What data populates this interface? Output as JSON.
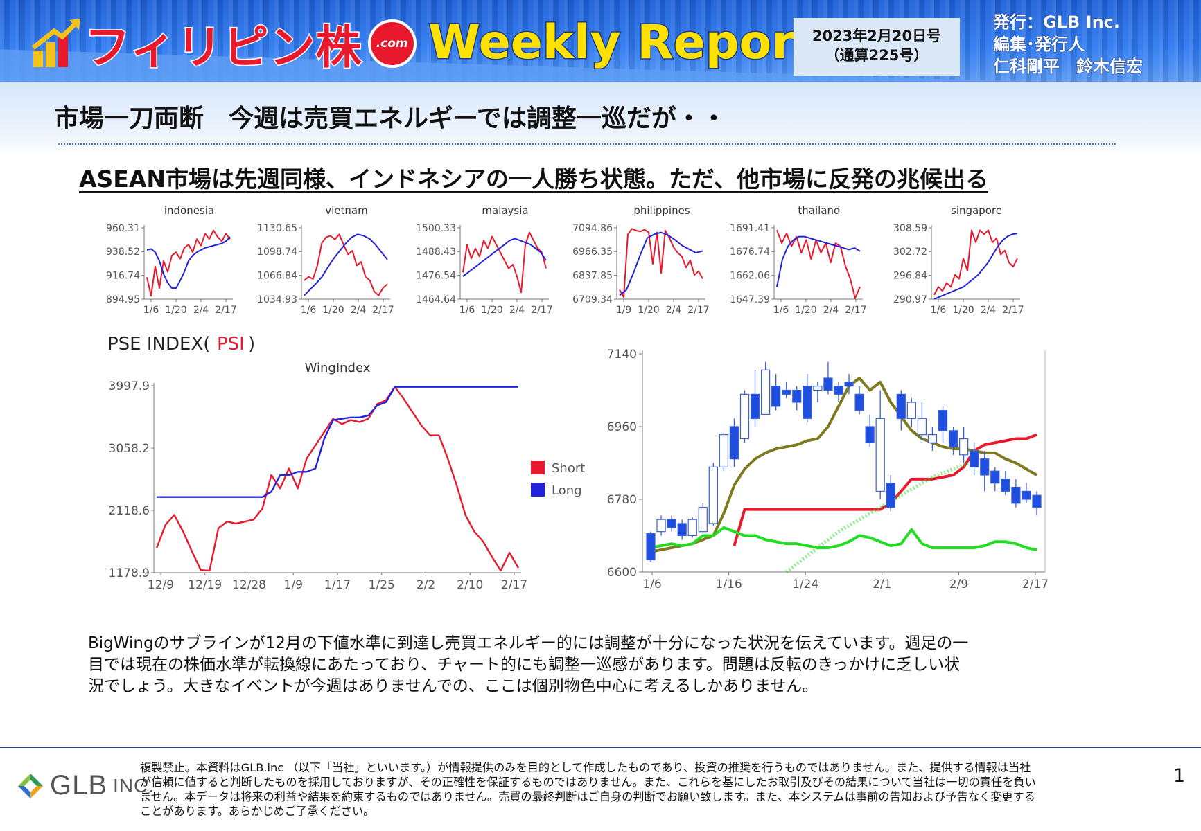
{
  "header": {
    "logo_text": "フィリピン株",
    "logo_dotcom": ".com",
    "report_name": "Weekly Report",
    "date_line1": "2023年2月20日号",
    "date_line2": "（通算225号）",
    "publisher_line1": "発行：GLB Inc.",
    "publisher_line2": "編集･発行人",
    "publisher_line3": "仁科剛平　鈴木信宏"
  },
  "main_title": "市場一刀両断　今週は売買エネルギーでは調整一巡だが・・",
  "subtitle": "ASEAN市場は先週同様、インドネシアの一人勝ち状態。ただ、他市場に反発の兆候出る",
  "colors": {
    "red": "#e8192c",
    "blue": "#2222dd",
    "olive": "#7f7a1e",
    "green": "#22dd22",
    "candle_blue": "#1f4fe0"
  },
  "chart_data": [
    {
      "type": "line",
      "title": "indonesia",
      "yticks": [
        "960.31",
        "938.52",
        "916.74",
        "894.95"
      ],
      "ylim": [
        894.95,
        960.31
      ],
      "xticks": [
        "1/6",
        "1/20",
        "2/4",
        "2/17"
      ],
      "series": [
        {
          "color": "red",
          "values": [
            915,
            898,
            925,
            905,
            930,
            920,
            935,
            938,
            932,
            942,
            945,
            938,
            950,
            944,
            955,
            950,
            958,
            952,
            948,
            955,
            950
          ]
        },
        {
          "color": "blue",
          "values": [
            940,
            941,
            938,
            930,
            918,
            910,
            905,
            905,
            912,
            920,
            930,
            935,
            938,
            940,
            942,
            943,
            944,
            945,
            946,
            948,
            952
          ]
        }
      ]
    },
    {
      "type": "line",
      "title": "vietnam",
      "yticks": [
        "1130.65",
        "1098.74",
        "1066.84",
        "1034.93"
      ],
      "ylim": [
        1034.93,
        1130.65
      ],
      "xticks": [
        "1/6",
        "1/20",
        "2/4",
        "2/17"
      ],
      "series": [
        {
          "color": "red",
          "values": [
            1060,
            1065,
            1062,
            1080,
            1110,
            1118,
            1120,
            1115,
            1122,
            1108,
            1095,
            1100,
            1080,
            1085,
            1065,
            1060,
            1045,
            1040,
            1050,
            1055
          ]
        },
        {
          "color": "blue",
          "values": [
            1040,
            1048,
            1056,
            1065,
            1078,
            1090,
            1100,
            1110,
            1118,
            1122,
            1120,
            1116,
            1108,
            1098,
            1088
          ]
        }
      ]
    },
    {
      "type": "line",
      "title": "malaysia",
      "yticks": [
        "1500.33",
        "1488.43",
        "1476.54",
        "1464.64"
      ],
      "ylim": [
        1464.64,
        1500.33
      ],
      "xticks": [
        "1/6",
        "1/20",
        "2/4",
        "2/17"
      ],
      "series": [
        {
          "color": "red",
          "values": [
            1478,
            1492,
            1485,
            1490,
            1486,
            1494,
            1490,
            1496,
            1492,
            1488,
            1484,
            1480,
            1482,
            1476,
            1468,
            1492,
            1498,
            1494,
            1490,
            1488,
            1480
          ]
        },
        {
          "color": "blue",
          "values": [
            1476,
            1478,
            1480,
            1482,
            1484,
            1486,
            1488,
            1490,
            1492,
            1494,
            1495,
            1494,
            1493,
            1492,
            1490,
            1488,
            1484
          ]
        }
      ]
    },
    {
      "type": "line",
      "title": "philippines",
      "yticks": [
        "7094.86",
        "6966.35",
        "6837.85",
        "6709.34"
      ],
      "ylim": [
        6709.34,
        7094.86
      ],
      "xticks": [
        "1/9",
        "1/20",
        "2/4",
        "2/17"
      ],
      "series": [
        {
          "color": "red",
          "values": [
            6760,
            6720,
            7060,
            7090,
            7080,
            7075,
            7085,
            7070,
            6900,
            7070,
            6850,
            7080,
            7040,
            6990,
            6960,
            6940,
            6880,
            6920,
            6840,
            6860,
            6820
          ]
        },
        {
          "color": "blue",
          "values": [
            6730,
            6760,
            6850,
            6950,
            7040,
            7060,
            7070,
            7055,
            7030,
            7000,
            6980,
            6960,
            6970
          ]
        }
      ]
    },
    {
      "type": "line",
      "title": "thailand",
      "yticks": [
        "1691.41",
        "1676.74",
        "1662.06",
        "1647.39"
      ],
      "ylim": [
        1647.39,
        1691.41
      ],
      "xticks": [
        "1/6",
        "1/20",
        "2/4",
        "2/17"
      ],
      "series": [
        {
          "color": "red",
          "values": [
            1690,
            1682,
            1688,
            1680,
            1686,
            1676,
            1684,
            1672,
            1684,
            1676,
            1682,
            1670,
            1682,
            1680,
            1668,
            1660,
            1648,
            1655
          ]
        },
        {
          "color": "blue",
          "values": [
            1655,
            1672,
            1680,
            1684,
            1686,
            1686,
            1685,
            1684,
            1683,
            1682,
            1681,
            1680,
            1679,
            1678,
            1679,
            1677
          ]
        }
      ]
    },
    {
      "type": "line",
      "title": "singapore",
      "yticks": [
        "308.59",
        "302.72",
        "296.84",
        "290.97"
      ],
      "ylim": [
        290.97,
        308.59
      ],
      "xticks": [
        "1/6",
        "1/20",
        "2/4",
        "2/17"
      ],
      "series": [
        {
          "color": "red",
          "values": [
            292,
            294,
            293,
            295,
            294,
            297,
            296,
            301,
            298,
            308,
            305,
            308,
            307,
            308,
            305,
            306,
            302,
            303,
            300,
            299,
            301
          ]
        },
        {
          "color": "blue",
          "values": [
            291,
            291.5,
            292,
            292.5,
            293,
            293.5,
            294,
            295,
            296,
            297,
            298.5,
            300,
            302,
            304,
            305.5,
            306.5,
            307,
            307.2
          ]
        }
      ]
    },
    {
      "type": "line",
      "title": "WingIndex",
      "header": "PSE INDEX(",
      "header_psi": "PSI",
      "header_close": ")",
      "yticks": [
        "3997.9",
        "3058.2",
        "2118.6",
        "1178.9"
      ],
      "ylim": [
        1178.9,
        3997.9
      ],
      "xticks": [
        "12/9",
        "12/19",
        "12/28",
        "1/9",
        "1/17",
        "1/25",
        "2/2",
        "2/10",
        "2/17"
      ],
      "legend": [
        "Short",
        "Long"
      ],
      "series": [
        {
          "name": "Short",
          "color": "red",
          "values": [
            1550,
            1900,
            2050,
            1800,
            1500,
            1220,
            1210,
            1850,
            1950,
            1920,
            1950,
            1980,
            2150,
            2650,
            2450,
            2750,
            2450,
            2900,
            3100,
            3300,
            3500,
            3420,
            3480,
            3450,
            3500,
            3720,
            3780,
            3980,
            3800,
            3600,
            3400,
            3250,
            3250,
            2900,
            2500,
            2050,
            1800,
            1650,
            1420,
            1210,
            1480,
            1250
          ]
        },
        {
          "name": "Long",
          "color": "blue",
          "values": [
            2320,
            2320,
            2320,
            2320,
            2320,
            2320,
            2320,
            2320,
            2320,
            2320,
            2320,
            2320,
            2320,
            2400,
            2650,
            2650,
            2700,
            2700,
            2750,
            3200,
            3480,
            3500,
            3520,
            3520,
            3550,
            3700,
            3750,
            3980,
            3980,
            3980,
            3980,
            3980,
            3980,
            3980,
            3980,
            3980,
            3980,
            3980,
            3980,
            3980,
            3980,
            3980
          ]
        }
      ]
    },
    {
      "type": "candlestick",
      "yticks": [
        "7140",
        "6960",
        "6780",
        "6600"
      ],
      "ylim": [
        6600,
        7140
      ],
      "xticks": [
        "1/6",
        "1/16",
        "1/24",
        "2/1",
        "2/9",
        "2/17"
      ],
      "candles": [
        [
          6695,
          6630,
          6700,
          6625
        ],
        [
          6700,
          6730,
          6740,
          6690
        ],
        [
          6730,
          6710,
          6740,
          6700
        ],
        [
          6720,
          6690,
          6730,
          6680
        ],
        [
          6690,
          6730,
          6735,
          6685
        ],
        [
          6700,
          6760,
          6770,
          6695
        ],
        [
          6720,
          6860,
          6870,
          6715
        ],
        [
          6860,
          6940,
          6945,
          6850
        ],
        [
          6960,
          6880,
          6980,
          6860
        ],
        [
          6930,
          7040,
          7050,
          6920
        ],
        [
          7040,
          6980,
          7100,
          6960
        ],
        [
          6990,
          7100,
          7120,
          7050
        ],
        [
          7060,
          7010,
          7090,
          7000
        ],
        [
          7050,
          7040,
          7070,
          7030
        ],
        [
          7050,
          7020,
          7060,
          7000
        ],
        [
          7060,
          6980,
          7090,
          6970
        ],
        [
          7050,
          7060,
          7070,
          7020
        ],
        [
          7080,
          7050,
          7120,
          7040
        ],
        [
          7060,
          7040,
          7070,
          7020
        ],
        [
          7070,
          7060,
          7090,
          7040
        ],
        [
          7040,
          7000,
          7060,
          6990
        ],
        [
          6960,
          6920,
          6990,
          6910
        ],
        [
          6800,
          6980,
          7050,
          6780
        ],
        [
          6820,
          6760,
          6840,
          6750
        ],
        [
          7040,
          6980,
          7050,
          6950
        ],
        [
          6980,
          7020,
          7030,
          6960
        ],
        [
          6940,
          6980,
          7020,
          6920
        ],
        [
          6920,
          6940,
          6960,
          6900
        ],
        [
          7000,
          6950,
          7010,
          6920
        ],
        [
          6950,
          6910,
          6960,
          6890
        ],
        [
          6890,
          6930,
          6960,
          6870
        ],
        [
          6900,
          6860,
          6920,
          6840
        ],
        [
          6880,
          6840,
          6900,
          6800
        ],
        [
          6850,
          6820,
          6860,
          6800
        ],
        [
          6830,
          6800,
          6850,
          6790
        ],
        [
          6810,
          6770,
          6830,
          6760
        ],
        [
          6800,
          6780,
          6820,
          6770
        ],
        [
          6790,
          6760,
          6800,
          6740
        ]
      ],
      "lines": [
        {
          "color": "red",
          "values": [
            null,
            null,
            null,
            null,
            null,
            null,
            null,
            null,
            6665,
            6755,
            6755,
            6755,
            6755,
            6755,
            6755,
            6755,
            6755,
            6755,
            6755,
            6755,
            6755,
            6755,
            6755,
            6770,
            6800,
            6830,
            6830,
            6830,
            6835,
            6840,
            6860,
            6900,
            6915,
            6920,
            6925,
            6930,
            6930,
            6940
          ]
        },
        {
          "color": "olive",
          "values": [
            6650,
            6655,
            6660,
            6665,
            6670,
            6680,
            6690,
            6745,
            6815,
            6855,
            6880,
            6895,
            6905,
            6910,
            6915,
            6925,
            6930,
            6960,
            7010,
            7060,
            7080,
            7050,
            7070,
            7020,
            6985,
            6950,
            6930,
            6920,
            6910,
            6905,
            6905,
            6900,
            6895,
            6895,
            6880,
            6870,
            6855,
            6840
          ]
        },
        {
          "color": "green",
          "values": [
            6660,
            6665,
            6670,
            6665,
            6670,
            6690,
            6690,
            6710,
            6700,
            6690,
            6690,
            6680,
            6675,
            6670,
            6670,
            6665,
            6660,
            6660,
            6665,
            6675,
            6690,
            6685,
            6675,
            6665,
            6670,
            6705,
            6670,
            6660,
            6660,
            6660,
            6660,
            6660,
            6665,
            6675,
            6675,
            6670,
            6660,
            6655
          ]
        },
        {
          "color": "green_dotted",
          "values": [
            null,
            null,
            null,
            null,
            null,
            null,
            null,
            null,
            null,
            null,
            null,
            null,
            null,
            6600,
            6620,
            6640,
            6660,
            6680,
            6700,
            6715,
            6730,
            6745,
            6760,
            6775,
            6790,
            6805,
            6820,
            6835,
            6845,
            6855,
            6865,
            6875
          ]
        }
      ]
    }
  ],
  "body_text_line1": "BigWingのサブラインが12月の下値水準に到達し売買エネルギー的には調整が十分になった状況を伝えています。週足の一",
  "body_text_line2": "目では現在の株価水準が転換線にあたっており、チャート的にも調整一巡感があります。問題は反転のきっかけに乏しい状",
  "body_text_line3": "況でしょう。大きなイベントが今週はありませんでの、ここは個別物色中心に考えるしかありません。",
  "footer": {
    "logo_glb": "GLB",
    "logo_inc": "INC.",
    "disclaimer_line1": "複製禁止。本資料はGLB.inc （以下「当社」といいます。）が情報提供のみを目的として作成したものであり、投資の推奨を行うものではありません。また、提供する情報は当社",
    "disclaimer_line2": "が信頼に値すると判断したものを採用しておりますが、その正確性を保証するものではありません。また、これらを基にしたお取引及びその結果について当社は一切の責任を負い",
    "disclaimer_line3": "ません。本データは将来の利益や結果を約束するものではありません。売買の最終判断はご自身の判断でお願い致します。また、本システムは事前の告知および予告なく変更する",
    "disclaimer_line4": "ことがあります。あらかじめご了承ください。",
    "page_number": "1"
  }
}
